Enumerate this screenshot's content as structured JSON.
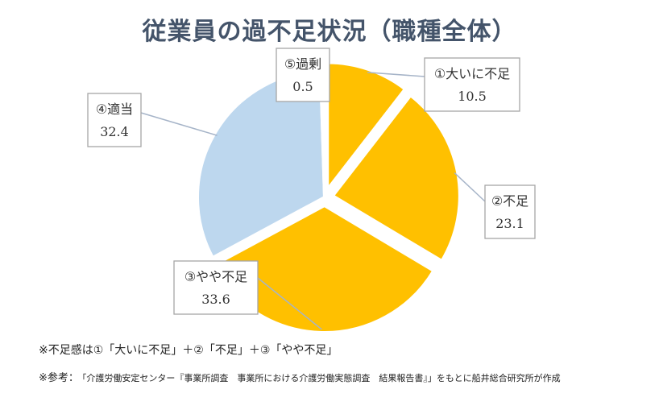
{
  "chart_data": {
    "type": "pie",
    "title": "従業員の過不足状況（職種全体）",
    "slices": [
      {
        "label": "①大いに不足",
        "value": 10.5,
        "color": "#ffc000",
        "exploded": true
      },
      {
        "label": "②不足",
        "value": 23.1,
        "color": "#ffc000",
        "exploded": true
      },
      {
        "label": "③やや不足",
        "value": 33.6,
        "color": "#ffc000",
        "exploded": true
      },
      {
        "label": "④適当",
        "value": 32.4,
        "color": "#bdd7ee",
        "exploded": false
      },
      {
        "label": "⑤過剰",
        "value": 0.5,
        "color": "#bdd7ee",
        "exploded": false
      }
    ]
  },
  "notes": {
    "deficit_definition": "※不足感は①「大いに不足」＋②「不足」＋③「やや不足」",
    "reference_prefix": "※参考：",
    "reference_source": "「介護労働安定センター『事業所調査　事業所における介護労働実態調査　結果報告書』」をもとに船井総合研究所が作成"
  },
  "colors": {
    "title": "#44546a",
    "label_border": "#a6a6a6",
    "leader_line": "#a6b4c8"
  }
}
